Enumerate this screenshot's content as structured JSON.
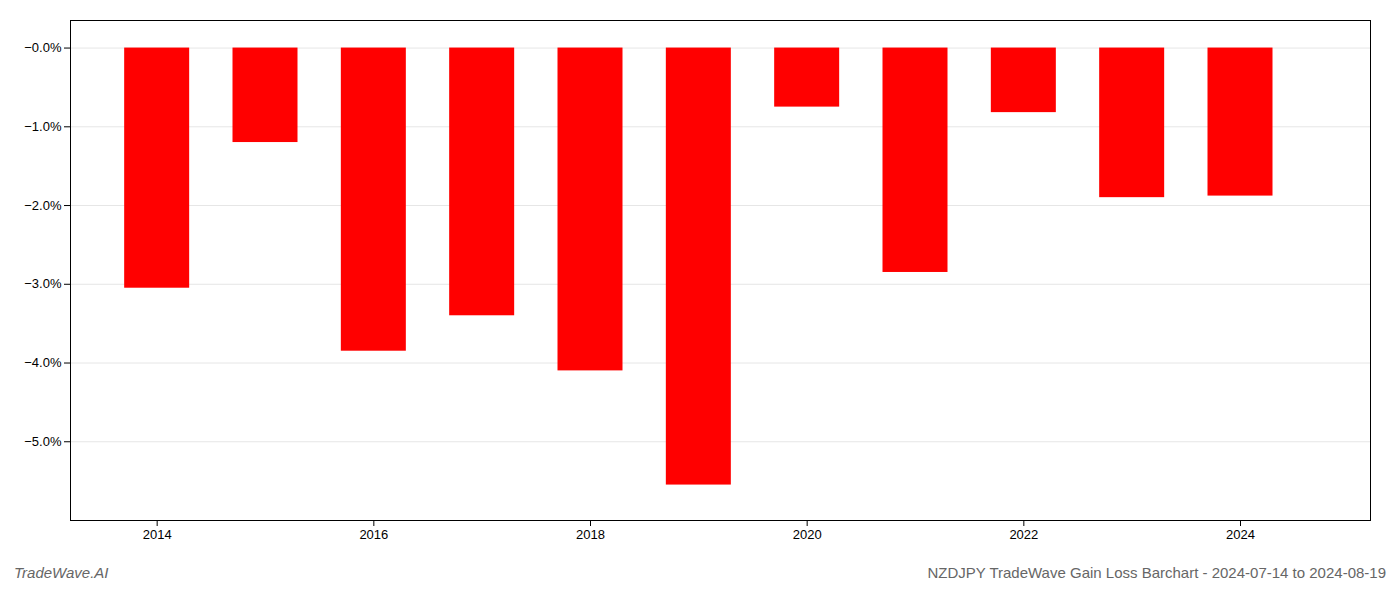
{
  "chart_data": {
    "type": "bar",
    "title": "NZDJPY TradeWave Gain Loss Barchart - 2024-07-14 to 2024-08-19",
    "annotations": [
      "TradeWave.AI"
    ],
    "x": [
      2014,
      2015,
      2016,
      2017,
      2018,
      2019,
      2020,
      2021,
      2022,
      2023,
      2024
    ],
    "values": [
      -3.05,
      -1.2,
      -3.85,
      -3.4,
      -4.1,
      -5.55,
      -0.75,
      -2.85,
      -0.82,
      -1.9,
      -1.88
    ],
    "color": "#ff0000",
    "xlim": [
      2013.2,
      2025.2
    ],
    "xticks": [
      2014,
      2016,
      2018,
      2020,
      2022,
      2024
    ],
    "ylim": [
      -6.0,
      0.35
    ],
    "yticks": [
      {
        "value": 0.0,
        "label": "−0.0%"
      },
      {
        "value": -1.0,
        "label": "−1.0%"
      },
      {
        "value": -2.0,
        "label": "−2.0%"
      },
      {
        "value": -3.0,
        "label": "−3.0%"
      },
      {
        "value": -4.0,
        "label": "−4.0%"
      },
      {
        "value": -5.0,
        "label": "−5.0%"
      }
    ],
    "grid": true
  }
}
